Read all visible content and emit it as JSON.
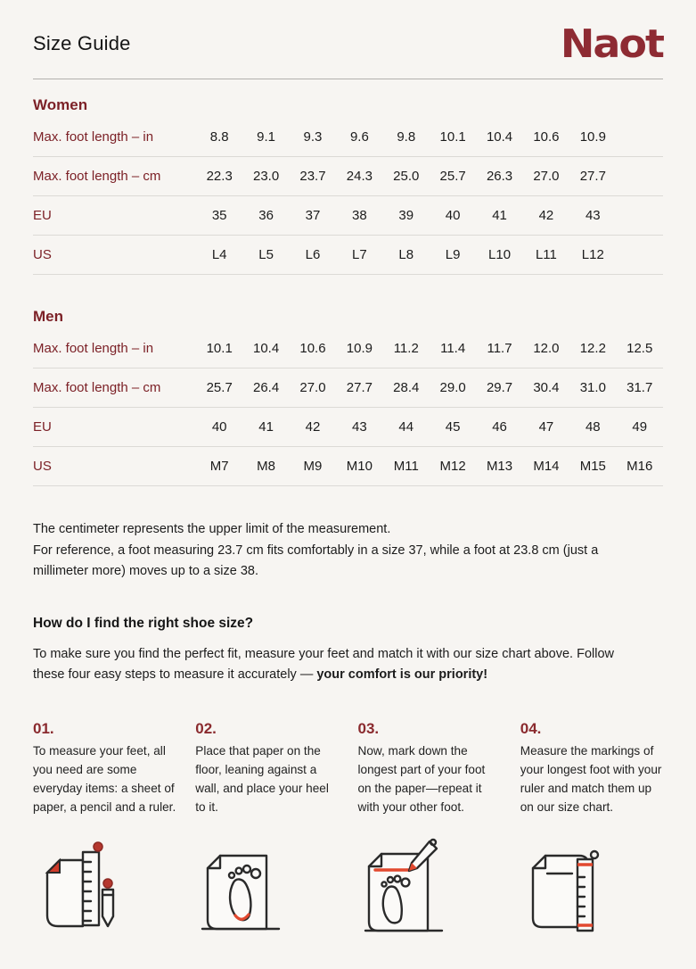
{
  "page": {
    "title": "Size Guide",
    "brand": "Naot"
  },
  "colors": {
    "background": "#f7f5f2",
    "brand_red": "#8e2b33",
    "heading_maroon": "#7c2127",
    "step_red": "#8a2a2e",
    "icon_accent": "#e2492f",
    "text": "#1c1c1c",
    "row_divider": "#dcdad6",
    "header_divider": "#b2b0ad"
  },
  "women": {
    "heading": "Women",
    "rows": [
      {
        "label": "Max. foot length – in",
        "values": [
          "8.8",
          "9.1",
          "9.3",
          "9.6",
          "9.8",
          "10.1",
          "10.4",
          "10.6",
          "10.9"
        ]
      },
      {
        "label": "Max. foot length – cm",
        "values": [
          "22.3",
          "23.0",
          "23.7",
          "24.3",
          "25.0",
          "25.7",
          "26.3",
          "27.0",
          "27.7"
        ]
      },
      {
        "label": "EU",
        "values": [
          "35",
          "36",
          "37",
          "38",
          "39",
          "40",
          "41",
          "42",
          "43"
        ]
      },
      {
        "label": "US",
        "values": [
          "L4",
          "L5",
          "L6",
          "L7",
          "L8",
          "L9",
          "L10",
          "L11",
          "L12"
        ]
      }
    ]
  },
  "men": {
    "heading": "Men",
    "rows": [
      {
        "label": "Max. foot length – in",
        "values": [
          "10.1",
          "10.4",
          "10.6",
          "10.9",
          "11.2",
          "11.4",
          "11.7",
          "12.0",
          "12.2",
          "12.5"
        ]
      },
      {
        "label": "Max. foot length – cm",
        "values": [
          "25.7",
          "26.4",
          "27.0",
          "27.7",
          "28.4",
          "29.0",
          "29.7",
          "30.4",
          "31.0",
          "31.7"
        ]
      },
      {
        "label": "EU",
        "values": [
          "40",
          "41",
          "42",
          "43",
          "44",
          "45",
          "46",
          "47",
          "48",
          "49"
        ]
      },
      {
        "label": "US",
        "values": [
          "M7",
          "M8",
          "M9",
          "M10",
          "M11",
          "M12",
          "M13",
          "M14",
          "M15",
          "M16"
        ]
      }
    ]
  },
  "notes": {
    "line1": "The centimeter represents the upper limit of the measurement.",
    "line2": "For reference, a foot measuring 23.7 cm fits comfortably in a size 37, while a foot at 23.8 cm (just a millimeter more) moves up to a size 38."
  },
  "how_to": {
    "heading": "How do I find the right shoe size?",
    "intro_regular": "To make sure you find the perfect fit, measure your feet and match it with our size chart above. Follow these four easy steps to measure it accurately — ",
    "intro_bold": "your comfort is our priority!"
  },
  "steps": [
    {
      "number": "01.",
      "text": "To measure your feet, all you need are some everyday items: a sheet of paper, a pencil and a ruler.",
      "icon": "paper-pencil-ruler-icon"
    },
    {
      "number": "02.",
      "text": "Place that paper on the floor, leaning against a wall, and place your heel to it.",
      "icon": "paper-heel-footprint-icon"
    },
    {
      "number": "03.",
      "text": "Now, mark down the longest part of your foot on the paper—repeat it with your other foot.",
      "icon": "paper-footprint-pencil-mark-icon"
    },
    {
      "number": "04.",
      "text": "Measure the markings of your longest foot with your ruler and match them up on our size chart.",
      "icon": "paper-ruler-marks-icon"
    }
  ]
}
